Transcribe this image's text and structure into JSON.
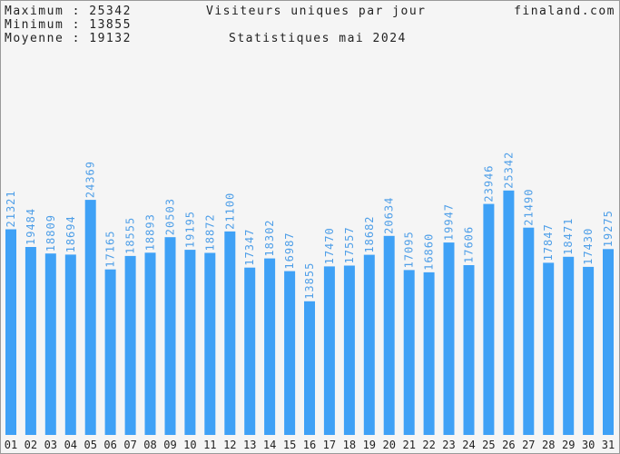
{
  "header": {
    "max_label": "Maximum : 25342",
    "min_label": "Minimum : 13855",
    "avg_label": "Moyenne : 19132",
    "title": "Visiteurs uniques par jour",
    "subtitle": "Statistiques mai 2024",
    "site": "finaland.com"
  },
  "colors": {
    "bar": "#3fa1f6",
    "value_label": "#4f9fe8",
    "background": "#f5f5f5",
    "border": "#9a9a9a"
  },
  "chart_data": {
    "type": "bar",
    "title": "Visiteurs uniques par jour",
    "subtitle": "Statistiques mai 2024",
    "categories": [
      "01",
      "02",
      "03",
      "04",
      "05",
      "06",
      "07",
      "08",
      "09",
      "10",
      "11",
      "12",
      "13",
      "14",
      "15",
      "16",
      "17",
      "18",
      "19",
      "20",
      "21",
      "22",
      "23",
      "24",
      "25",
      "26",
      "27",
      "28",
      "29",
      "30",
      "31"
    ],
    "values": [
      21321,
      19484,
      18809,
      18694,
      24369,
      17165,
      18555,
      18893,
      20503,
      19195,
      18872,
      21100,
      17347,
      18302,
      16987,
      13855,
      17470,
      17557,
      18682,
      20634,
      17095,
      16860,
      19947,
      17606,
      23946,
      25342,
      21490,
      17847,
      18471,
      17430,
      19275
    ],
    "ylim": [
      0,
      45000
    ],
    "grid": false,
    "legend": "none",
    "data_labels": true
  }
}
